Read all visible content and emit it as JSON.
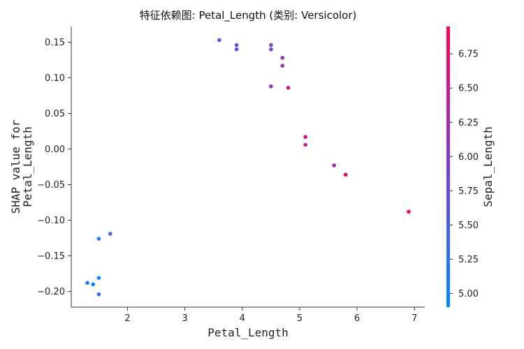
{
  "chart_data": {
    "type": "scatter",
    "title": "特征依赖图: Petal_Length (类别: Versicolor)",
    "xlabel": "Petal_Length",
    "ylabel_lines": [
      "SHAP value for",
      "Petal_Length"
    ],
    "xlim": [
      1.02,
      7.18
    ],
    "ylim": [
      -0.222,
      0.172
    ],
    "x_ticks": [
      2,
      3,
      4,
      5,
      6,
      7
    ],
    "x_tick_labels": [
      "2",
      "3",
      "4",
      "5",
      "6",
      "7"
    ],
    "y_ticks": [
      0.15,
      0.1,
      0.05,
      0.0,
      -0.05,
      -0.1,
      -0.15,
      -0.2
    ],
    "y_tick_labels": [
      "0.15",
      "0.10",
      "0.05",
      "0.00",
      "−0.05",
      "−0.10",
      "−0.15",
      "−0.20"
    ],
    "colorbar": {
      "label": "Sepal_Length",
      "range": [
        4.9,
        6.95
      ],
      "ticks": [
        5.0,
        5.25,
        5.5,
        5.75,
        6.0,
        6.25,
        6.5,
        6.75
      ],
      "tick_labels": [
        "5.00",
        "5.25",
        "5.50",
        "5.75",
        "6.00",
        "6.25",
        "6.50",
        "6.75"
      ],
      "colormap": [
        "#008afb",
        "#7b3ed8",
        "#ff0051"
      ]
    },
    "points": [
      {
        "x": 3.6,
        "y": 0.153,
        "c": 5.6
      },
      {
        "x": 3.9,
        "y": 0.146,
        "c": 5.8
      },
      {
        "x": 3.9,
        "y": 0.14,
        "c": 5.6
      },
      {
        "x": 4.5,
        "y": 0.146,
        "c": 5.7
      },
      {
        "x": 4.5,
        "y": 0.14,
        "c": 5.9
      },
      {
        "x": 4.7,
        "y": 0.128,
        "c": 6.1
      },
      {
        "x": 4.7,
        "y": 0.117,
        "c": 6.1
      },
      {
        "x": 4.5,
        "y": 0.088,
        "c": 6.2
      },
      {
        "x": 4.8,
        "y": 0.086,
        "c": 6.6
      },
      {
        "x": 5.1,
        "y": 0.017,
        "c": 6.6
      },
      {
        "x": 5.1,
        "y": 0.006,
        "c": 6.4
      },
      {
        "x": 5.6,
        "y": -0.023,
        "c": 6.3
      },
      {
        "x": 5.8,
        "y": -0.036,
        "c": 6.7
      },
      {
        "x": 6.9,
        "y": -0.088,
        "c": 6.9
      },
      {
        "x": 1.7,
        "y": -0.119,
        "c": 5.5
      },
      {
        "x": 1.5,
        "y": -0.126,
        "c": 5.1
      },
      {
        "x": 1.5,
        "y": -0.181,
        "c": 5.0
      },
      {
        "x": 1.3,
        "y": -0.188,
        "c": 5.2
      },
      {
        "x": 1.4,
        "y": -0.19,
        "c": 5.0
      },
      {
        "x": 1.5,
        "y": -0.204,
        "c": 5.3
      }
    ]
  }
}
